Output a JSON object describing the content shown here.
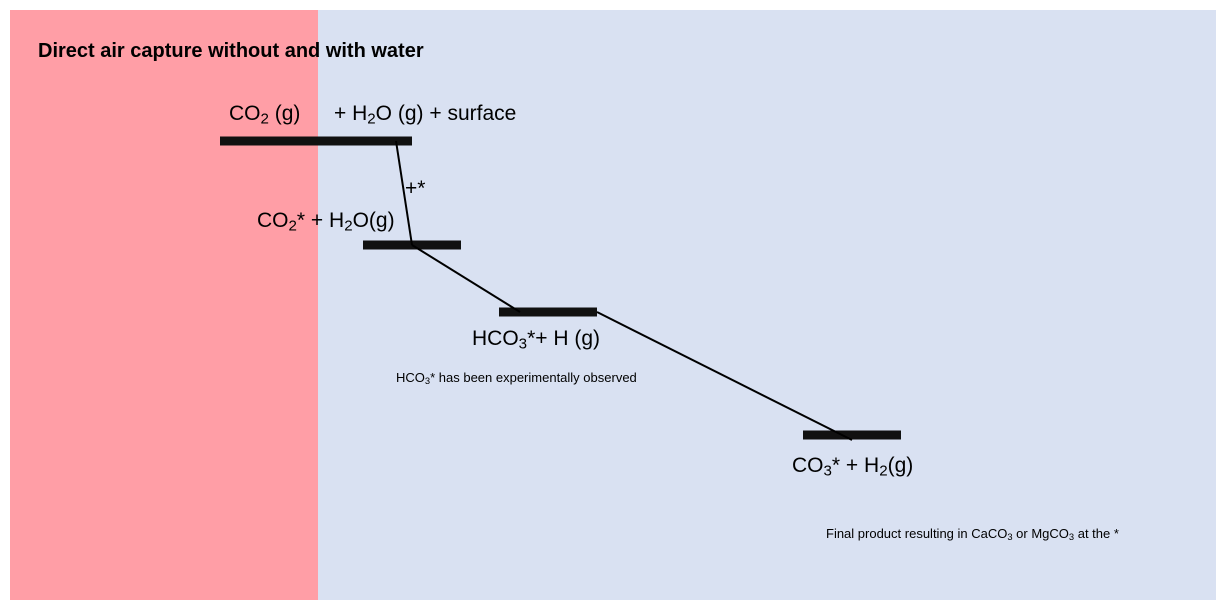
{
  "colors": {
    "left_panel": "#ff9ea6",
    "right_panel": "#d9e1f2",
    "level_bar": "#111111"
  },
  "title": "Direct air capture without and with water",
  "levels": [
    {
      "id": "level-1",
      "parts": [
        {
          "t": "CO"
        },
        {
          "t": "2",
          "sub": true
        },
        {
          "t": " (g)"
        }
      ]
    },
    {
      "id": "level-1b",
      "parts": [
        {
          "t": "+ H"
        },
        {
          "t": "2",
          "sub": true
        },
        {
          "t": "O (g) + surface"
        }
      ]
    },
    {
      "id": "level-2",
      "parts": [
        {
          "t": "CO"
        },
        {
          "t": "2",
          "sub": true
        },
        {
          "t": "* + H"
        },
        {
          "t": "2",
          "sub": true
        },
        {
          "t": "O(g)"
        }
      ]
    },
    {
      "id": "level-3",
      "parts": [
        {
          "t": "HCO"
        },
        {
          "t": "3",
          "sub": true
        },
        {
          "t": "*+ H (g)"
        }
      ]
    },
    {
      "id": "level-4",
      "parts": [
        {
          "t": "CO"
        },
        {
          "t": "3",
          "sub": true
        },
        {
          "t": "* + H"
        },
        {
          "t": "2",
          "sub": true
        },
        {
          "t": "(g)"
        }
      ]
    }
  ],
  "step_label": "+*",
  "notes": {
    "hco3_note": [
      {
        "t": "HCO"
      },
      {
        "t": "3",
        "sub": true
      },
      {
        "t": "* has been experimentally observed"
      }
    ],
    "final_note": [
      {
        "t": "Final product resulting in CaCO"
      },
      {
        "t": "3",
        "sub": true
      },
      {
        "t": " or MgCO"
      },
      {
        "t": "3",
        "sub": true
      },
      {
        "t": " at the *"
      }
    ]
  }
}
